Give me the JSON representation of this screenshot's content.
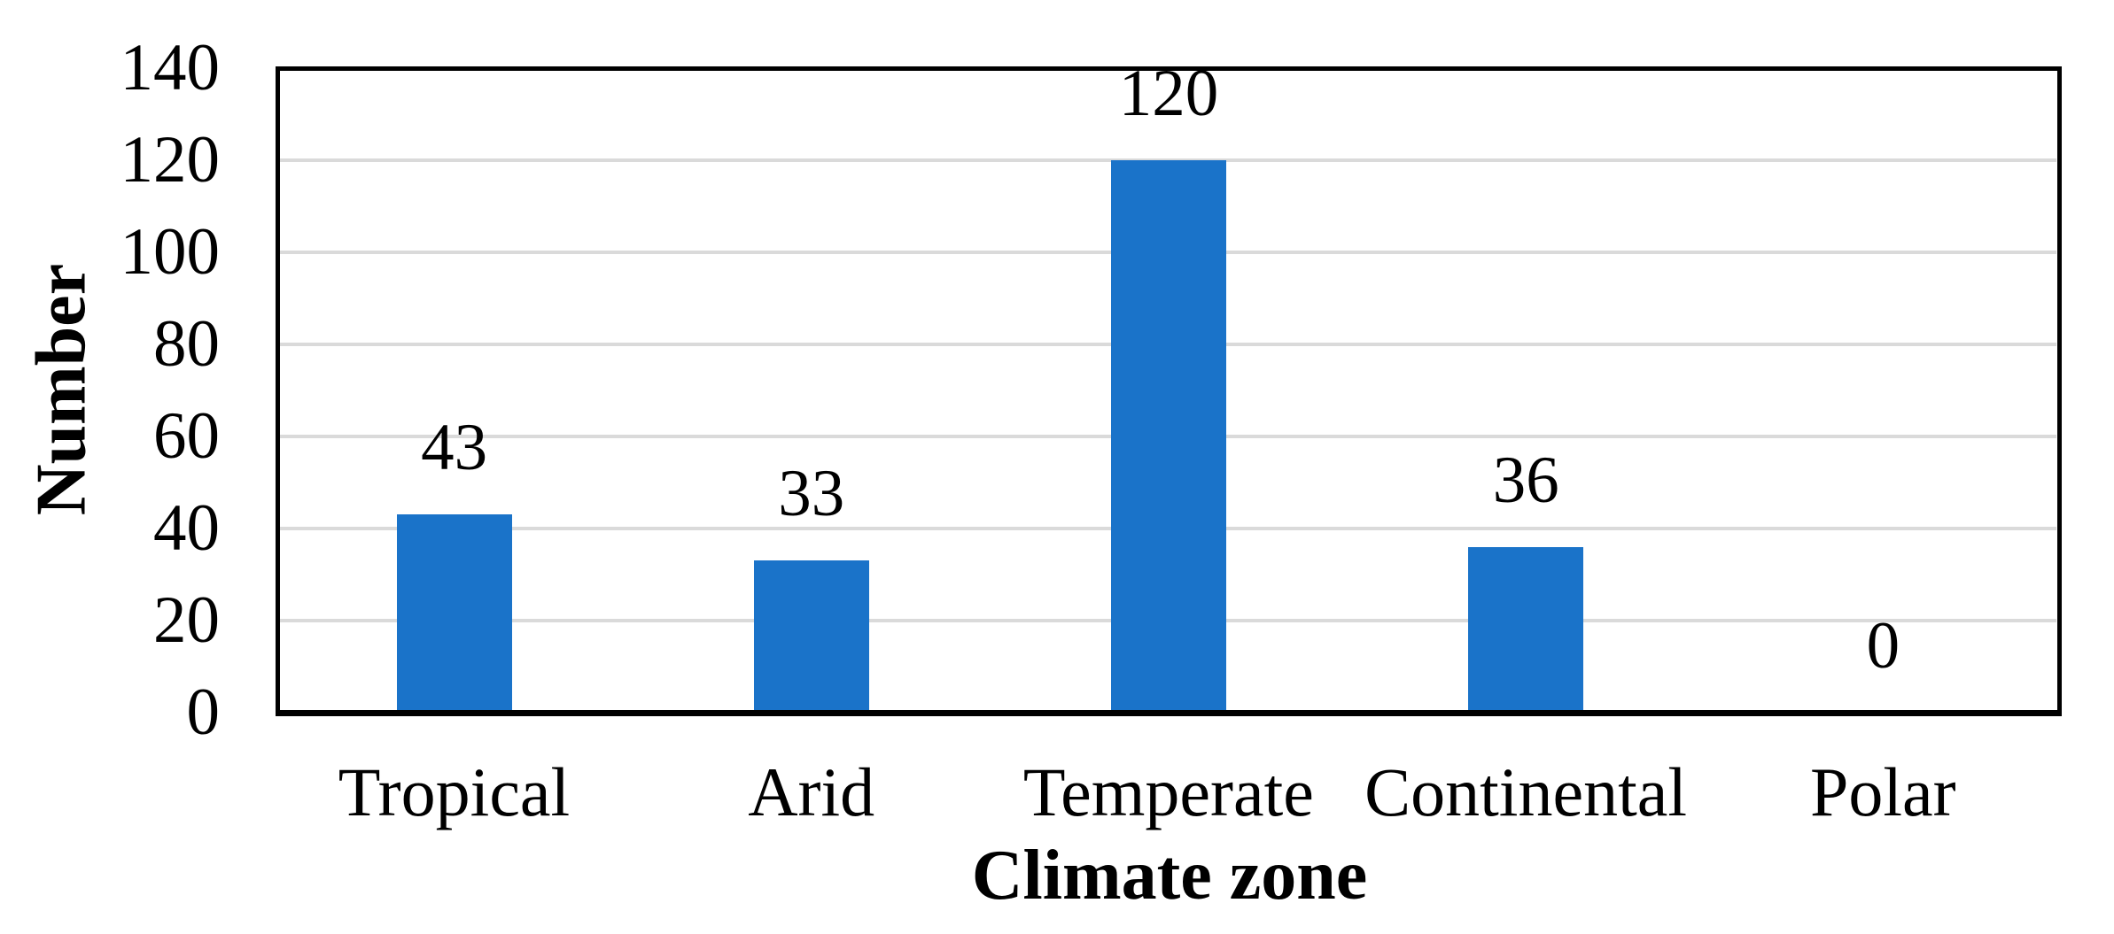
{
  "chart_data": {
    "type": "bar",
    "title": "",
    "xlabel": "Climate zone",
    "ylabel": "Number",
    "categories": [
      "Tropical",
      "Arid",
      "Temperate",
      "Continental",
      "Polar"
    ],
    "values": [
      43,
      33,
      120,
      36,
      0
    ],
    "data_labels": [
      "43",
      "33",
      "120",
      "36",
      "0"
    ],
    "data_label_position": "outside-end",
    "ylim": [
      0,
      140
    ],
    "yticks": [
      0,
      20,
      40,
      60,
      80,
      100,
      120,
      140
    ],
    "grid": "horizontal",
    "legend_position": "none",
    "colors": {
      "bar_fill": "#1A73C9",
      "gridline": "#DADADA",
      "axis_line": "#000000",
      "text": "#000000",
      "background": "#FFFFFF"
    }
  }
}
